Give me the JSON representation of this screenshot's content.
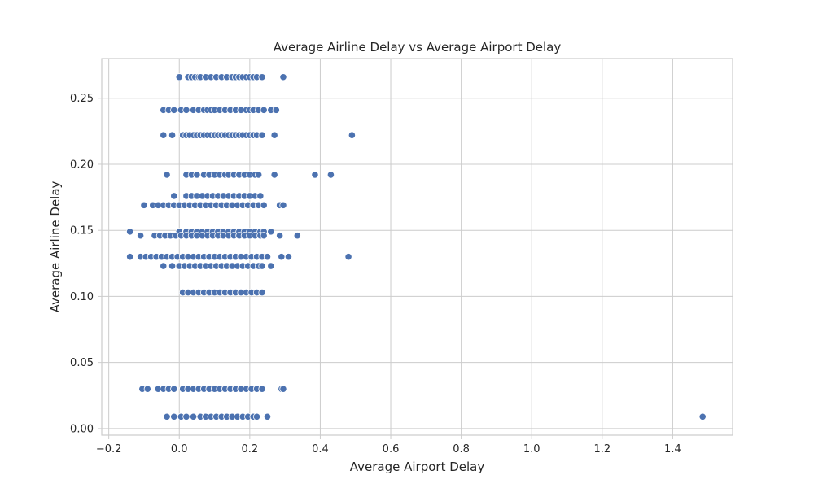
{
  "chart_data": {
    "type": "scatter",
    "title": "Average Airline Delay vs Average Airport Delay",
    "xlabel": "Average Airport Delay",
    "ylabel": "Average Airline Delay",
    "xlim": [
      -0.22,
      1.57
    ],
    "ylim": [
      -0.005,
      0.28
    ],
    "xticks": [
      -0.2,
      0.0,
      0.2,
      0.4,
      0.6,
      0.8,
      1.0,
      1.2,
      1.4
    ],
    "xtick_labels": [
      "−0.2",
      "0.0",
      "0.2",
      "0.4",
      "0.6",
      "0.8",
      "1.0",
      "1.2",
      "1.4"
    ],
    "yticks": [
      0.0,
      0.05,
      0.1,
      0.15,
      0.2,
      0.25
    ],
    "ytick_labels": [
      "0.00",
      "0.05",
      "0.10",
      "0.15",
      "0.20",
      "0.25"
    ],
    "grid": true,
    "marker_color": "#4c72b0",
    "series": [
      {
        "y": 0.266,
        "x": [
          0.0,
          0.025,
          0.035,
          0.045,
          0.055,
          0.06,
          0.075,
          0.09,
          0.105,
          0.12,
          0.135,
          0.15,
          0.16,
          0.17,
          0.18,
          0.19,
          0.2,
          0.21,
          0.22,
          0.235,
          0.295
        ]
      },
      {
        "y": 0.241,
        "x": [
          -0.045,
          -0.03,
          -0.015,
          0.005,
          0.02,
          0.04,
          0.055,
          0.07,
          0.08,
          0.09,
          0.1,
          0.115,
          0.13,
          0.145,
          0.16,
          0.175,
          0.19,
          0.2,
          0.21,
          0.225,
          0.24,
          0.26,
          0.275
        ]
      },
      {
        "y": 0.222,
        "x": [
          -0.045,
          -0.02,
          0.01,
          0.02,
          0.03,
          0.04,
          0.05,
          0.06,
          0.07,
          0.08,
          0.09,
          0.1,
          0.11,
          0.12,
          0.13,
          0.14,
          0.15,
          0.16,
          0.17,
          0.18,
          0.19,
          0.2,
          0.21,
          0.22,
          0.235,
          0.27,
          0.49
        ]
      },
      {
        "y": 0.192,
        "x": [
          -0.035,
          0.02,
          0.035,
          0.05,
          0.07,
          0.085,
          0.1,
          0.115,
          0.13,
          0.14,
          0.155,
          0.17,
          0.185,
          0.2,
          0.215,
          0.225,
          0.27,
          0.385,
          0.43
        ]
      },
      {
        "y": 0.176,
        "x": [
          -0.015,
          0.02,
          0.035,
          0.05,
          0.065,
          0.08,
          0.095,
          0.11,
          0.125,
          0.14,
          0.155,
          0.17,
          0.185,
          0.2,
          0.215,
          0.23
        ]
      },
      {
        "y": 0.169,
        "x": [
          -0.1,
          -0.075,
          -0.06,
          -0.045,
          -0.03,
          -0.015,
          0.0,
          0.015,
          0.03,
          0.045,
          0.06,
          0.075,
          0.09,
          0.105,
          0.12,
          0.135,
          0.15,
          0.165,
          0.18,
          0.195,
          0.21,
          0.225,
          0.24,
          0.285,
          0.295
        ]
      },
      {
        "y": 0.149,
        "x": [
          -0.14,
          0.0,
          0.02,
          0.035,
          0.05,
          0.065,
          0.08,
          0.095,
          0.11,
          0.125,
          0.14,
          0.155,
          0.17,
          0.185,
          0.2,
          0.215,
          0.23,
          0.24,
          0.26
        ]
      },
      {
        "y": 0.146,
        "x": [
          -0.11,
          -0.07,
          -0.055,
          -0.04,
          -0.025,
          -0.01,
          0.005,
          0.02,
          0.035,
          0.05,
          0.065,
          0.08,
          0.095,
          0.11,
          0.125,
          0.14,
          0.155,
          0.17,
          0.185,
          0.2,
          0.215,
          0.23,
          0.24,
          0.285,
          0.335
        ]
      },
      {
        "y": 0.13,
        "x": [
          -0.14,
          -0.11,
          -0.095,
          -0.08,
          -0.065,
          -0.05,
          -0.035,
          -0.02,
          -0.005,
          0.01,
          0.025,
          0.04,
          0.055,
          0.07,
          0.085,
          0.1,
          0.115,
          0.13,
          0.145,
          0.16,
          0.175,
          0.19,
          0.205,
          0.22,
          0.235,
          0.25,
          0.29,
          0.31,
          0.48
        ]
      },
      {
        "y": 0.123,
        "x": [
          -0.045,
          -0.02,
          0.0,
          0.015,
          0.03,
          0.045,
          0.06,
          0.075,
          0.09,
          0.105,
          0.12,
          0.135,
          0.15,
          0.165,
          0.18,
          0.195,
          0.21,
          0.225,
          0.235,
          0.26
        ]
      },
      {
        "y": 0.103,
        "x": [
          0.01,
          0.025,
          0.04,
          0.055,
          0.07,
          0.085,
          0.1,
          0.115,
          0.13,
          0.145,
          0.16,
          0.175,
          0.19,
          0.205,
          0.22,
          0.235
        ]
      },
      {
        "y": 0.03,
        "x": [
          -0.105,
          -0.09,
          -0.06,
          -0.045,
          -0.03,
          -0.015,
          0.01,
          0.025,
          0.04,
          0.055,
          0.07,
          0.085,
          0.1,
          0.115,
          0.13,
          0.145,
          0.16,
          0.175,
          0.19,
          0.205,
          0.22,
          0.235,
          0.29,
          0.295
        ]
      },
      {
        "y": 0.009,
        "x": [
          -0.035,
          -0.015,
          0.005,
          0.02,
          0.04,
          0.06,
          0.075,
          0.09,
          0.105,
          0.12,
          0.135,
          0.15,
          0.165,
          0.18,
          0.195,
          0.21,
          0.22,
          0.25,
          1.485
        ]
      }
    ]
  }
}
